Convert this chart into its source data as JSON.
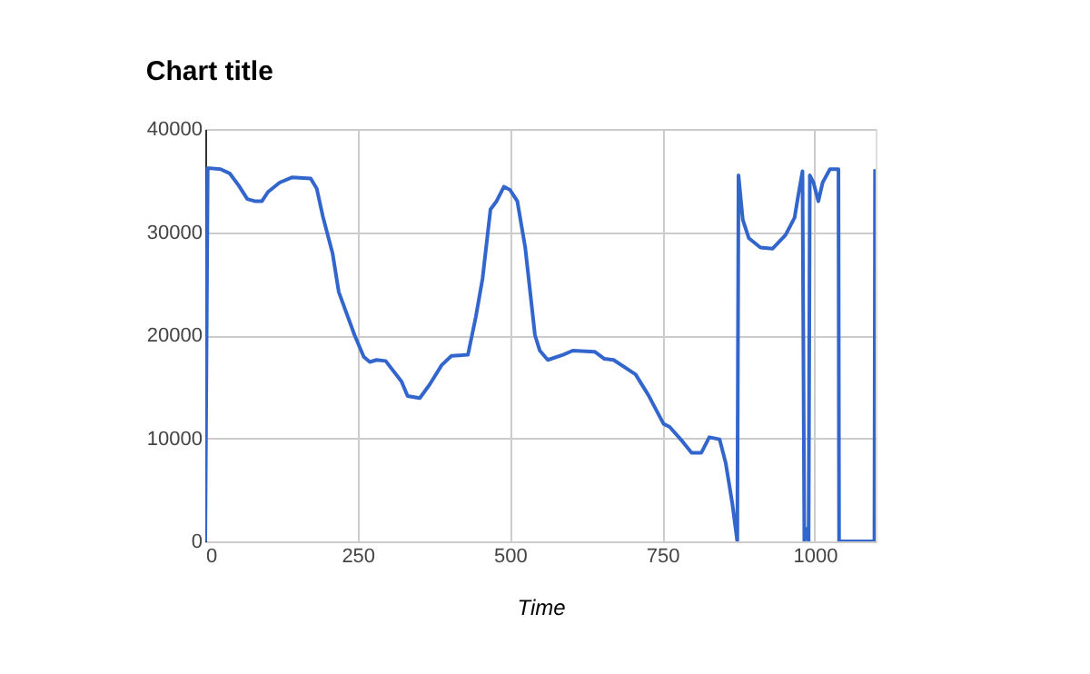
{
  "chart_data": {
    "type": "line",
    "title": "Chart title",
    "xlabel": "Time",
    "x": [
      0,
      4,
      7,
      25,
      40,
      55,
      69,
      81,
      93,
      103,
      122,
      142,
      173,
      183,
      193,
      209,
      219,
      245,
      260,
      270,
      281,
      296,
      322,
      332,
      352,
      368,
      388,
      404,
      431,
      444,
      455,
      468,
      478,
      490,
      500,
      512,
      525,
      541,
      549,
      562,
      587,
      603,
      639,
      655,
      670,
      706,
      727,
      752,
      762,
      783,
      798,
      814,
      827,
      844,
      854,
      865,
      873,
      875,
      882,
      892,
      911,
      931,
      952,
      967,
      974,
      980,
      983,
      987,
      990,
      992,
      998,
      1006,
      1013,
      1025,
      1039,
      1040,
      1098,
      1099
    ],
    "series": [
      {
        "color": "#3366cc",
        "values": [
          0,
          36200,
          36200,
          36100,
          35700,
          34500,
          33200,
          33000,
          33000,
          33900,
          34800,
          35300,
          35200,
          34200,
          31500,
          27900,
          24200,
          20000,
          17900,
          17400,
          17600,
          17500,
          15500,
          14100,
          13900,
          15200,
          17100,
          18000,
          18100,
          21800,
          25500,
          32200,
          33000,
          34400,
          34100,
          33000,
          28500,
          20000,
          18500,
          17600,
          18100,
          18500,
          18400,
          17700,
          17600,
          16200,
          14200,
          11400,
          11100,
          9700,
          8600,
          8600,
          10100,
          9900,
          7600,
          3600,
          0,
          35500,
          31200,
          29400,
          28500,
          28400,
          29700,
          31400,
          33900,
          35900,
          0,
          1200,
          0,
          35500,
          34800,
          33000,
          34800,
          36100,
          36100,
          0,
          0,
          36100
        ]
      }
    ],
    "xlim": [
      0,
      1100
    ],
    "xticks": [
      0,
      250,
      500,
      750,
      1000
    ],
    "ylim": [
      0,
      40000
    ],
    "yticks": [
      0,
      10000,
      20000,
      30000,
      40000
    ],
    "grid": true,
    "marker": "none",
    "line_style": "solid"
  }
}
